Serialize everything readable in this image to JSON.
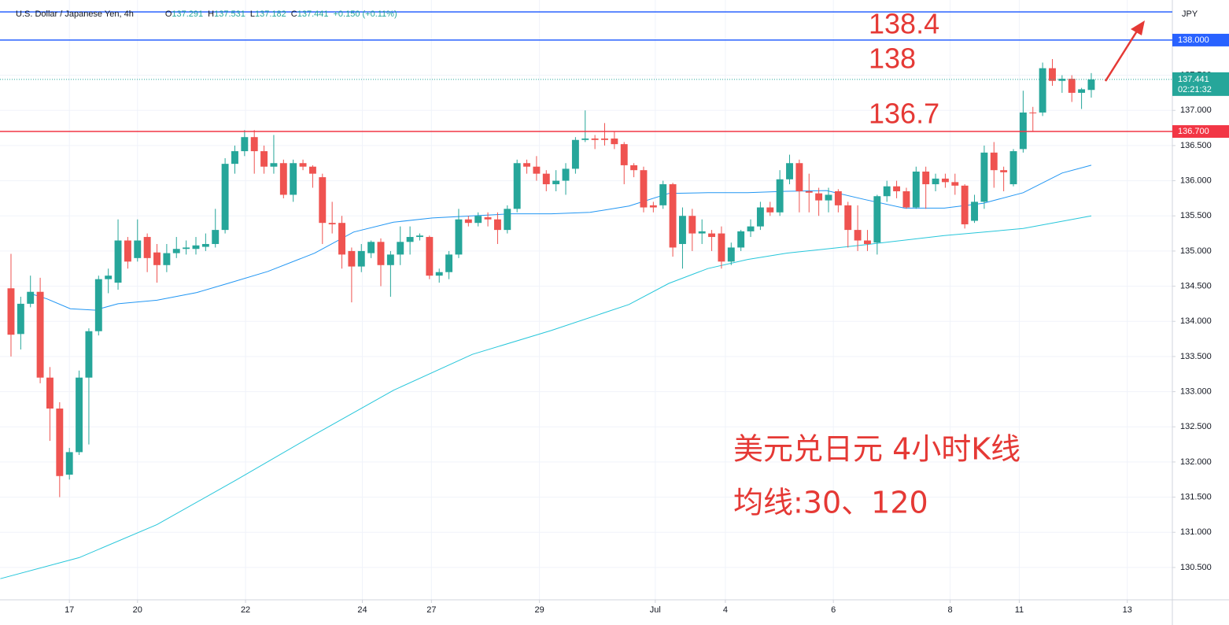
{
  "chart_data": {
    "type": "candlestick",
    "header": {
      "symbol": "U.S. Dollar / Japanese Yen, 4h",
      "ohlc": [
        {
          "key": "O",
          "value": "137.291"
        },
        {
          "key": "H",
          "value": "137.531"
        },
        {
          "key": "L",
          "value": "137.182"
        },
        {
          "key": "C",
          "value": "137.441"
        }
      ],
      "change": "+0.150 (+0.11%)"
    },
    "currency": "JPY",
    "up_color": "#26a69a",
    "down_color": "#ef5350",
    "grid": true,
    "open": [
      134.47,
      133.82,
      134.25,
      134.42,
      133.2,
      132.76,
      131.82,
      132.14,
      133.2,
      133.86,
      134.6,
      134.55,
      135.15,
      134.9,
      135.2,
      134.98,
      134.8,
      134.97,
      135.03,
      135.03,
      135.06,
      135.1,
      135.3,
      136.24,
      136.42,
      136.62,
      136.42,
      136.2,
      136.25,
      135.8,
      136.25,
      136.2,
      136.05,
      135.4,
      135.4,
      135.0,
      134.78,
      134.97,
      135.13,
      134.8,
      134.95,
      135.13,
      135.2,
      135.2,
      134.65,
      134.7,
      134.95,
      135.45,
      135.4,
      135.48,
      135.45,
      135.3,
      135.6,
      136.25,
      136.2,
      136.1,
      135.95,
      136.0,
      136.17,
      136.58,
      136.6,
      136.6,
      136.6,
      136.52,
      136.22,
      136.15,
      135.65,
      135.65,
      135.95,
      135.1,
      135.5,
      135.25,
      135.25,
      135.25,
      134.85,
      135.05,
      135.28,
      135.35,
      135.62,
      135.55,
      136.02,
      136.25,
      135.85,
      135.82,
      135.72,
      135.85,
      135.65,
      135.3,
      135.15,
      135.12,
      135.78,
      135.92,
      135.85,
      135.62,
      136.13,
      135.95,
      136.03,
      135.98,
      135.93,
      135.43,
      135.7,
      136.4,
      136.15,
      135.95,
      136.45,
      136.97,
      136.97,
      137.6,
      137.42,
      137.45,
      137.25,
      137.291
    ],
    "high": [
      134.96,
      134.35,
      134.65,
      134.62,
      133.35,
      132.85,
      132.2,
      133.3,
      133.9,
      134.65,
      134.75,
      135.45,
      135.2,
      135.45,
      135.25,
      135.1,
      135.1,
      135.2,
      135.15,
      135.2,
      135.25,
      135.6,
      136.32,
      136.5,
      136.72,
      136.72,
      136.5,
      136.65,
      136.3,
      136.3,
      136.3,
      136.22,
      136.1,
      135.7,
      135.5,
      135.05,
      135.1,
      135.15,
      135.18,
      135.0,
      135.35,
      135.35,
      135.25,
      135.22,
      134.75,
      135.0,
      135.6,
      135.5,
      135.55,
      135.55,
      135.55,
      135.65,
      136.3,
      136.3,
      136.35,
      136.15,
      136.15,
      136.25,
      136.62,
      137.0,
      136.65,
      136.82,
      136.7,
      136.55,
      136.25,
      136.2,
      135.7,
      136.0,
      135.97,
      135.62,
      135.6,
      135.45,
      135.3,
      135.35,
      135.12,
      135.3,
      135.45,
      135.7,
      135.7,
      136.15,
      136.37,
      136.3,
      136.1,
      135.9,
      135.9,
      135.88,
      135.7,
      135.65,
      135.3,
      135.8,
      136.0,
      136.0,
      135.9,
      136.2,
      136.2,
      136.1,
      136.1,
      136.1,
      135.95,
      135.8,
      136.5,
      136.55,
      136.2,
      136.45,
      137.28,
      137.05,
      137.68,
      137.73,
      137.5,
      137.5,
      137.32,
      137.531
    ],
    "low": [
      133.5,
      133.6,
      134.2,
      133.12,
      132.3,
      131.5,
      131.75,
      132.1,
      132.25,
      133.8,
      134.4,
      134.45,
      134.75,
      134.85,
      134.7,
      134.55,
      134.7,
      134.9,
      134.95,
      134.95,
      135.0,
      135.05,
      135.25,
      136.1,
      136.35,
      136.1,
      136.1,
      136.1,
      135.75,
      135.7,
      136.15,
      135.9,
      135.1,
      135.25,
      134.75,
      134.27,
      134.7,
      134.9,
      134.5,
      134.35,
      134.8,
      134.95,
      135.15,
      134.6,
      134.55,
      134.6,
      134.9,
      135.35,
      135.35,
      135.35,
      135.1,
      135.25,
      135.55,
      136.1,
      136.0,
      135.85,
      135.85,
      135.8,
      136.1,
      136.55,
      136.45,
      136.5,
      136.45,
      135.95,
      136.05,
      135.55,
      135.55,
      135.6,
      134.92,
      134.75,
      135.0,
      135.1,
      135.0,
      134.75,
      134.8,
      135.0,
      135.2,
      135.3,
      135.5,
      135.5,
      135.95,
      135.55,
      135.55,
      135.5,
      135.55,
      135.55,
      135.05,
      135.0,
      135.0,
      134.95,
      135.7,
      135.75,
      135.6,
      135.6,
      135.6,
      135.85,
      135.9,
      135.8,
      135.32,
      135.4,
      135.6,
      135.9,
      135.85,
      135.92,
      136.4,
      136.7,
      136.92,
      137.35,
      137.25,
      137.12,
      137.02,
      137.182
    ],
    "close": [
      133.81,
      134.25,
      134.42,
      133.2,
      132.76,
      131.8,
      132.14,
      133.2,
      133.86,
      134.6,
      134.65,
      135.15,
      134.85,
      135.15,
      134.9,
      134.8,
      134.97,
      135.03,
      135.05,
      135.08,
      135.1,
      135.3,
      136.24,
      136.42,
      136.62,
      136.42,
      136.2,
      136.25,
      135.8,
      136.25,
      136.2,
      136.1,
      135.4,
      135.38,
      134.95,
      134.78,
      135.0,
      135.13,
      134.8,
      134.95,
      135.13,
      135.2,
      135.22,
      134.65,
      134.7,
      134.95,
      135.45,
      135.4,
      135.5,
      135.45,
      135.3,
      135.6,
      136.25,
      136.2,
      136.1,
      135.95,
      136.0,
      136.17,
      136.58,
      136.6,
      136.58,
      136.58,
      136.52,
      136.22,
      136.15,
      135.62,
      135.62,
      135.95,
      135.05,
      135.5,
      135.25,
      135.28,
      135.2,
      134.85,
      135.05,
      135.28,
      135.35,
      135.62,
      135.55,
      136.02,
      136.25,
      135.85,
      135.83,
      135.72,
      135.8,
      135.65,
      135.3,
      135.15,
      135.1,
      135.78,
      135.92,
      135.85,
      135.62,
      136.13,
      135.95,
      136.03,
      135.98,
      135.93,
      135.38,
      135.7,
      136.4,
      136.15,
      136.12,
      136.42,
      136.97,
      136.96,
      137.6,
      137.42,
      137.45,
      137.25,
      137.3,
      137.441
    ],
    "ma_lines": [
      {
        "color": "#2196f3",
        "x": [
          2.1,
          3.7,
          6.1,
          8.6,
          11.0,
          15.0,
          19.1,
          22.3,
          26.4,
          31.2,
          35.2,
          39.3,
          43.3,
          47.4,
          51.4,
          55.5,
          59.5,
          63.5,
          67.6,
          71.6,
          75.7,
          79.7,
          83.8,
          87.8,
          91.8,
          95.9,
          99.9,
          104.0,
          108.0,
          111.0
        ],
        "values": [
          134.39,
          134.32,
          134.18,
          134.16,
          134.25,
          134.3,
          134.41,
          134.54,
          134.71,
          134.97,
          135.27,
          135.41,
          135.47,
          135.5,
          135.53,
          135.53,
          135.55,
          135.64,
          135.82,
          135.83,
          135.83,
          135.85,
          135.86,
          135.73,
          135.61,
          135.61,
          135.68,
          135.83,
          136.11,
          136.22
        ]
      },
      {
        "color": "#26c6da",
        "x": [
          -1.1,
          7.0,
          15.0,
          23.1,
          31.2,
          39.3,
          47.4,
          55.5,
          63.5,
          67.6,
          71.6,
          75.7,
          79.7,
          83.8,
          87.8,
          95.9,
          104.0,
          111.0
        ],
        "values": [
          130.34,
          130.64,
          131.11,
          131.74,
          132.39,
          133.02,
          133.53,
          133.87,
          134.24,
          134.54,
          134.75,
          134.88,
          134.97,
          135.03,
          135.09,
          135.22,
          135.32,
          135.5
        ]
      }
    ],
    "levels": [
      {
        "value": 138.4,
        "color": "#2962ff",
        "annotation": "138.4"
      },
      {
        "value": 138,
        "color": "#2962ff",
        "label": "138.000",
        "annotation": "138"
      },
      {
        "value": 136.7,
        "color": "#f23645",
        "label": "136.700",
        "annotation": "136.7"
      }
    ],
    "last": {
      "value": 137.441,
      "label": "137.441",
      "countdown": "02:21:32",
      "color": "#26a69a"
    },
    "annotations": [
      "美元兑日元 4小时K线",
      "均线:30、120"
    ],
    "xlim": [
      -1.13,
      119.33
    ],
    "xticks": [
      {
        "value": 6,
        "label": "17"
      },
      {
        "value": 13,
        "label": "20"
      },
      {
        "value": 24.1,
        "label": "22"
      },
      {
        "value": 36.1,
        "label": "24"
      },
      {
        "value": 43.2,
        "label": "27"
      },
      {
        "value": 54.3,
        "label": "29"
      },
      {
        "value": 66.2,
        "label": "Jul"
      },
      {
        "value": 73.4,
        "label": "4"
      },
      {
        "value": 84.5,
        "label": "6"
      },
      {
        "value": 96.5,
        "label": "8"
      },
      {
        "value": 103.6,
        "label": "11"
      },
      {
        "value": 114.7,
        "label": "13"
      }
    ],
    "ylim": [
      130.04,
      138.57
    ],
    "yticks": [
      {
        "value": 130.5,
        "label": "130.500"
      },
      {
        "value": 131,
        "label": "131.000"
      },
      {
        "value": 131.5,
        "label": "131.500"
      },
      {
        "value": 132,
        "label": "132.000"
      },
      {
        "value": 132.5,
        "label": "132.500"
      },
      {
        "value": 133,
        "label": "133.000"
      },
      {
        "value": 133.5,
        "label": "133.500"
      },
      {
        "value": 134,
        "label": "134.000"
      },
      {
        "value": 134.5,
        "label": "134.500"
      },
      {
        "value": 135,
        "label": "135.000"
      },
      {
        "value": 135.5,
        "label": "135.500"
      },
      {
        "value": 136,
        "label": "136.000"
      },
      {
        "value": 136.5,
        "label": "136.500"
      },
      {
        "value": 137,
        "label": "137.000"
      },
      {
        "value": 137.5,
        "label": "137.500"
      },
      {
        "value": 138,
        "label": "138.000"
      }
    ]
  }
}
